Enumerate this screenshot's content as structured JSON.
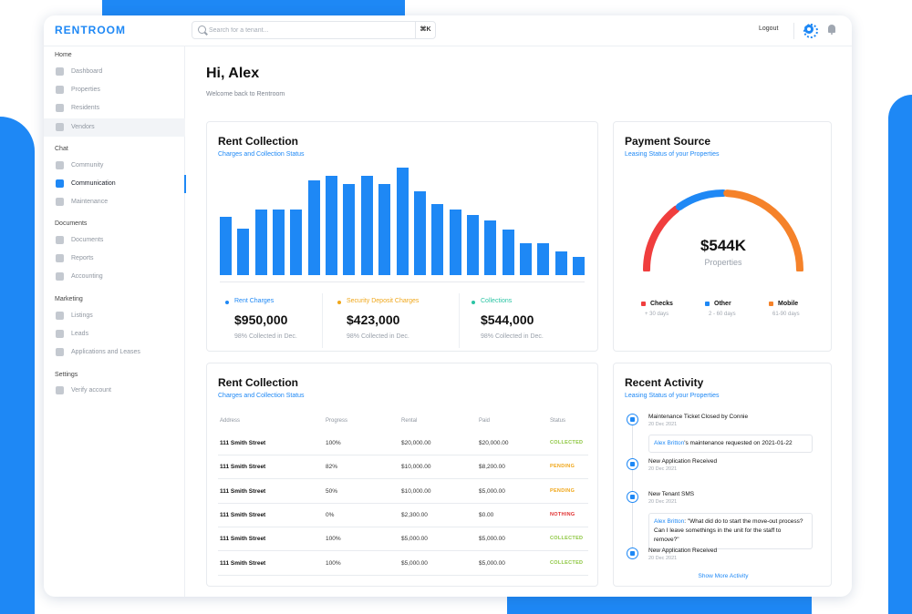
{
  "app": {
    "logo": "RENTROOM"
  },
  "search": {
    "placeholder": "Search for a tenant...",
    "shortcut": "⌘K"
  },
  "header": {
    "logout_label": "Logout"
  },
  "sidebar": {
    "sections": [
      {
        "label": "Home",
        "items": [
          {
            "label": "Dashboard",
            "icon": "dashboard-icon"
          },
          {
            "label": "Properties",
            "icon": "home-icon"
          },
          {
            "label": "Residents",
            "icon": "users-icon"
          },
          {
            "label": "Vendors",
            "icon": "wrench-icon"
          }
        ]
      },
      {
        "label": "Chat",
        "items": [
          {
            "label": "Community",
            "icon": "chat-icon"
          },
          {
            "label": "Communication",
            "icon": "mail-icon"
          },
          {
            "label": "Maintenance",
            "icon": "tools-icon"
          }
        ]
      },
      {
        "label": "Documents",
        "items": [
          {
            "label": "Documents",
            "icon": "document-icon"
          },
          {
            "label": "Reports",
            "icon": "report-icon"
          },
          {
            "label": "Accounting",
            "icon": "calculator-icon"
          }
        ]
      },
      {
        "label": "Marketing",
        "items": [
          {
            "label": "Listings",
            "icon": "list-icon"
          },
          {
            "label": "Leads",
            "icon": "leads-icon"
          },
          {
            "label": "Applications and Leases",
            "icon": "file-icon"
          }
        ]
      },
      {
        "label": "Settings",
        "items": [
          {
            "label": "Verify account",
            "icon": "shield-icon"
          }
        ]
      }
    ]
  },
  "greeting": {
    "title": "Hi, Alex",
    "subtitle": "Welcome back to Rentroom"
  },
  "rent_collection": {
    "title": "Rent Collection",
    "subtitle": "Charges and Collection Status",
    "metrics": [
      {
        "label": "Rent Charges",
        "value": "$950,000",
        "sub": "98% Collected in Dec.",
        "color": "#1e88f5"
      },
      {
        "label": "Security Deposit Charges",
        "value": "$423,000",
        "sub": "98% Collected in Dec.",
        "color": "#f0a71a"
      },
      {
        "label": "Collections",
        "value": "$544,000",
        "sub": "98% Collected in Dec.",
        "color": "#2bc4a4"
      }
    ]
  },
  "chart_data": {
    "type": "bar",
    "title": "Rent Collection",
    "subtitle": "Charges and Collection Status",
    "values": [
      52,
      41,
      58,
      58,
      58,
      84,
      88,
      81,
      88,
      81,
      95,
      74,
      63,
      58,
      53,
      48,
      40,
      28,
      28,
      21,
      16
    ],
    "color": "#1e88f5",
    "ylim": [
      0,
      100
    ],
    "grid": false
  },
  "payment_source": {
    "title": "Payment Source",
    "subtitle": "Leasing Status of your Properties",
    "value": "$544K",
    "label": "Properties",
    "segments": [
      {
        "name": "Checks",
        "sub": "+ 30 days",
        "color": "#f03e3e",
        "fraction": 0.3
      },
      {
        "name": "Other",
        "sub": "2 - 60 days",
        "color": "#1e88f5",
        "fraction": 0.2
      },
      {
        "name": "Mobile",
        "sub": "61-90 days",
        "color": "#f5822a",
        "fraction": 0.5
      }
    ]
  },
  "table": {
    "title": "Rent Collection",
    "subtitle": "Charges and Collection Status",
    "headers": [
      "Address",
      "Progress",
      "Rental",
      "Paid",
      "Status"
    ],
    "rows": [
      {
        "address": "111 Smith Street",
        "progress": "100%",
        "rental": "$20,000.00",
        "paid": "$20,000.00",
        "status": "COLLECTED",
        "status_color": "#8cc63f"
      },
      {
        "address": "111 Smith Street",
        "progress": "82%",
        "rental": "$10,000.00",
        "paid": "$8,200.00",
        "status": "PENDING",
        "status_color": "#f0a71a"
      },
      {
        "address": "111 Smith Street",
        "progress": "50%",
        "rental": "$10,000.00",
        "paid": "$5,000.00",
        "status": "PENDING",
        "status_color": "#f0a71a"
      },
      {
        "address": "111 Smith Street",
        "progress": "0%",
        "rental": "$2,300.00",
        "paid": "$0.00",
        "status": "NOTHING",
        "status_color": "#e03131"
      },
      {
        "address": "111 Smith Street",
        "progress": "100%",
        "rental": "$5,000.00",
        "paid": "$5,000.00",
        "status": "COLLECTED",
        "status_color": "#8cc63f"
      },
      {
        "address": "111 Smith Street",
        "progress": "100%",
        "rental": "$5,000.00",
        "paid": "$5,000.00",
        "status": "COLLECTED",
        "status_color": "#8cc63f"
      }
    ]
  },
  "activity": {
    "title": "Recent Activity",
    "subtitle": "Leasing Status of your Properties",
    "events": [
      {
        "title": "Maintenance Ticket Closed by Connie",
        "date": "20 Dec 2021",
        "icon": "ticket-icon"
      },
      {
        "title": "New Application Received",
        "date": "20 Dec 2021",
        "icon": "document-icon"
      },
      {
        "title": "New Tenant SMS",
        "date": "20 Dec 2021",
        "icon": "message-icon"
      },
      {
        "title": "New Application Received",
        "date": "20 Dec 2021",
        "icon": "document-icon"
      }
    ],
    "quote1": {
      "who": "Alex Britton",
      "text": "'s maintenance requested on 2021-01-22"
    },
    "quote2": {
      "who": "Alex Britton",
      "text": ": \"What did do to start the move-out process? Can I leave somethings in the unit for the staff to remove?\""
    },
    "show_more": "Show More Activity"
  }
}
